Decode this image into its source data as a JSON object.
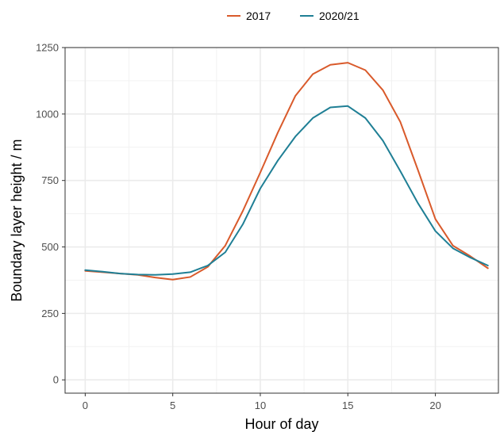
{
  "chart_data": {
    "type": "line",
    "xlabel": "Hour of day",
    "ylabel": "Boundary layer height / m",
    "xlim": [
      -1.15,
      23.6
    ],
    "ylim": [
      -50,
      1250
    ],
    "x_ticks": [
      0,
      5,
      10,
      15,
      20
    ],
    "y_ticks": [
      0,
      250,
      500,
      750,
      1000,
      1250
    ],
    "grid": true,
    "legend_position": "top",
    "x": [
      0,
      1,
      2,
      3,
      4,
      5,
      6,
      7,
      8,
      9,
      10,
      11,
      12,
      13,
      14,
      15,
      16,
      17,
      18,
      19,
      20,
      21,
      22,
      23
    ],
    "series": [
      {
        "name": "2017",
        "color": "#d95a2b",
        "values": [
          410,
          405,
          400,
          395,
          385,
          377,
          387,
          425,
          505,
          635,
          780,
          930,
          1068,
          1150,
          1185,
          1193,
          1165,
          1090,
          970,
          790,
          605,
          505,
          465,
          420
        ]
      },
      {
        "name": "2020/21",
        "color": "#1f7f95",
        "values": [
          413,
          407,
          400,
          396,
          395,
          398,
          405,
          430,
          480,
          585,
          720,
          825,
          915,
          985,
          1025,
          1030,
          985,
          900,
          785,
          665,
          560,
          495,
          460,
          430
        ]
      }
    ]
  }
}
